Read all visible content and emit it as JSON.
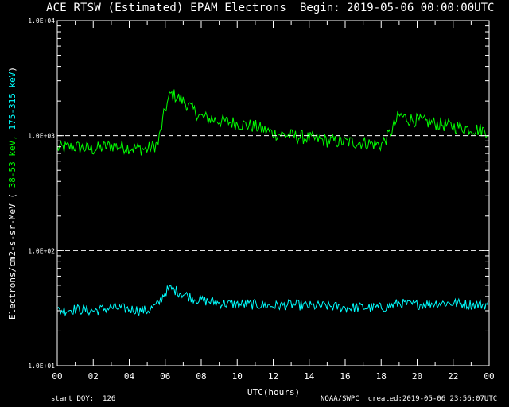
{
  "header": {
    "title": "ACE RTSW (Estimated) EPAM Electrons",
    "begin": "Begin: 2019-05-06 00:00:00UTC"
  },
  "footer": {
    "start_doy": "start DOY:  126",
    "credit": "NOAA/SWPC  created:2019-05-06 23:56:07UTC"
  },
  "colors": {
    "green": "#00ff00",
    "cyan": "#00ffff",
    "axis": "#ffffff",
    "background": "#000000"
  },
  "chart_data": {
    "type": "line",
    "xlabel": "UTC(hours)",
    "ylabel": {
      "prefix": "Electrons/cm2-s-sr-MeV  ( ",
      "green_part": "38-53 keV,",
      "cyan_part": "175-315 keV",
      "suffix": ")"
    },
    "yscale": "log",
    "xlim": [
      0,
      24
    ],
    "ylim": [
      10,
      10000
    ],
    "x_tick_labels": [
      "00",
      "02",
      "04",
      "06",
      "08",
      "10",
      "12",
      "14",
      "16",
      "18",
      "20",
      "22",
      "00"
    ],
    "y_tick_labels": [
      "1.0E+01",
      "1.0E+02",
      "1.0E+03",
      "1.0E+04"
    ],
    "reference_lines": [
      100,
      1000
    ],
    "series": [
      {
        "name": "38-53 keV",
        "color": "#00ff00",
        "x": [
          0,
          1,
          2,
          3,
          4,
          5,
          5.6,
          6.0,
          6.3,
          6.6,
          7.0,
          7.5,
          8,
          9,
          10,
          11,
          12,
          13,
          14,
          15,
          16,
          17,
          18,
          18.5,
          19,
          19.5,
          20,
          21,
          22,
          23,
          23.9
        ],
        "y": [
          780,
          800,
          760,
          820,
          790,
          760,
          850,
          1700,
          2300,
          2200,
          2000,
          1700,
          1450,
          1350,
          1280,
          1200,
          1050,
          1000,
          950,
          900,
          880,
          870,
          830,
          1050,
          1500,
          1400,
          1350,
          1280,
          1200,
          1150,
          1100
        ]
      },
      {
        "name": "175-315 keV",
        "color": "#00ffff",
        "x": [
          0,
          1,
          2,
          3,
          4,
          5,
          5.6,
          6.0,
          6.3,
          6.6,
          7.0,
          7.5,
          8,
          9,
          10,
          11,
          12,
          13,
          14,
          15,
          16,
          17,
          18,
          18.5,
          19,
          19.5,
          20,
          21,
          22,
          23,
          23.9
        ],
        "y": [
          30,
          31,
          30,
          32,
          31,
          30,
          34,
          44,
          47,
          45,
          42,
          39,
          37,
          35,
          34,
          34,
          33,
          34,
          33,
          33,
          32,
          32,
          32,
          33,
          35,
          34,
          34,
          35,
          35,
          34,
          34
        ]
      }
    ]
  }
}
